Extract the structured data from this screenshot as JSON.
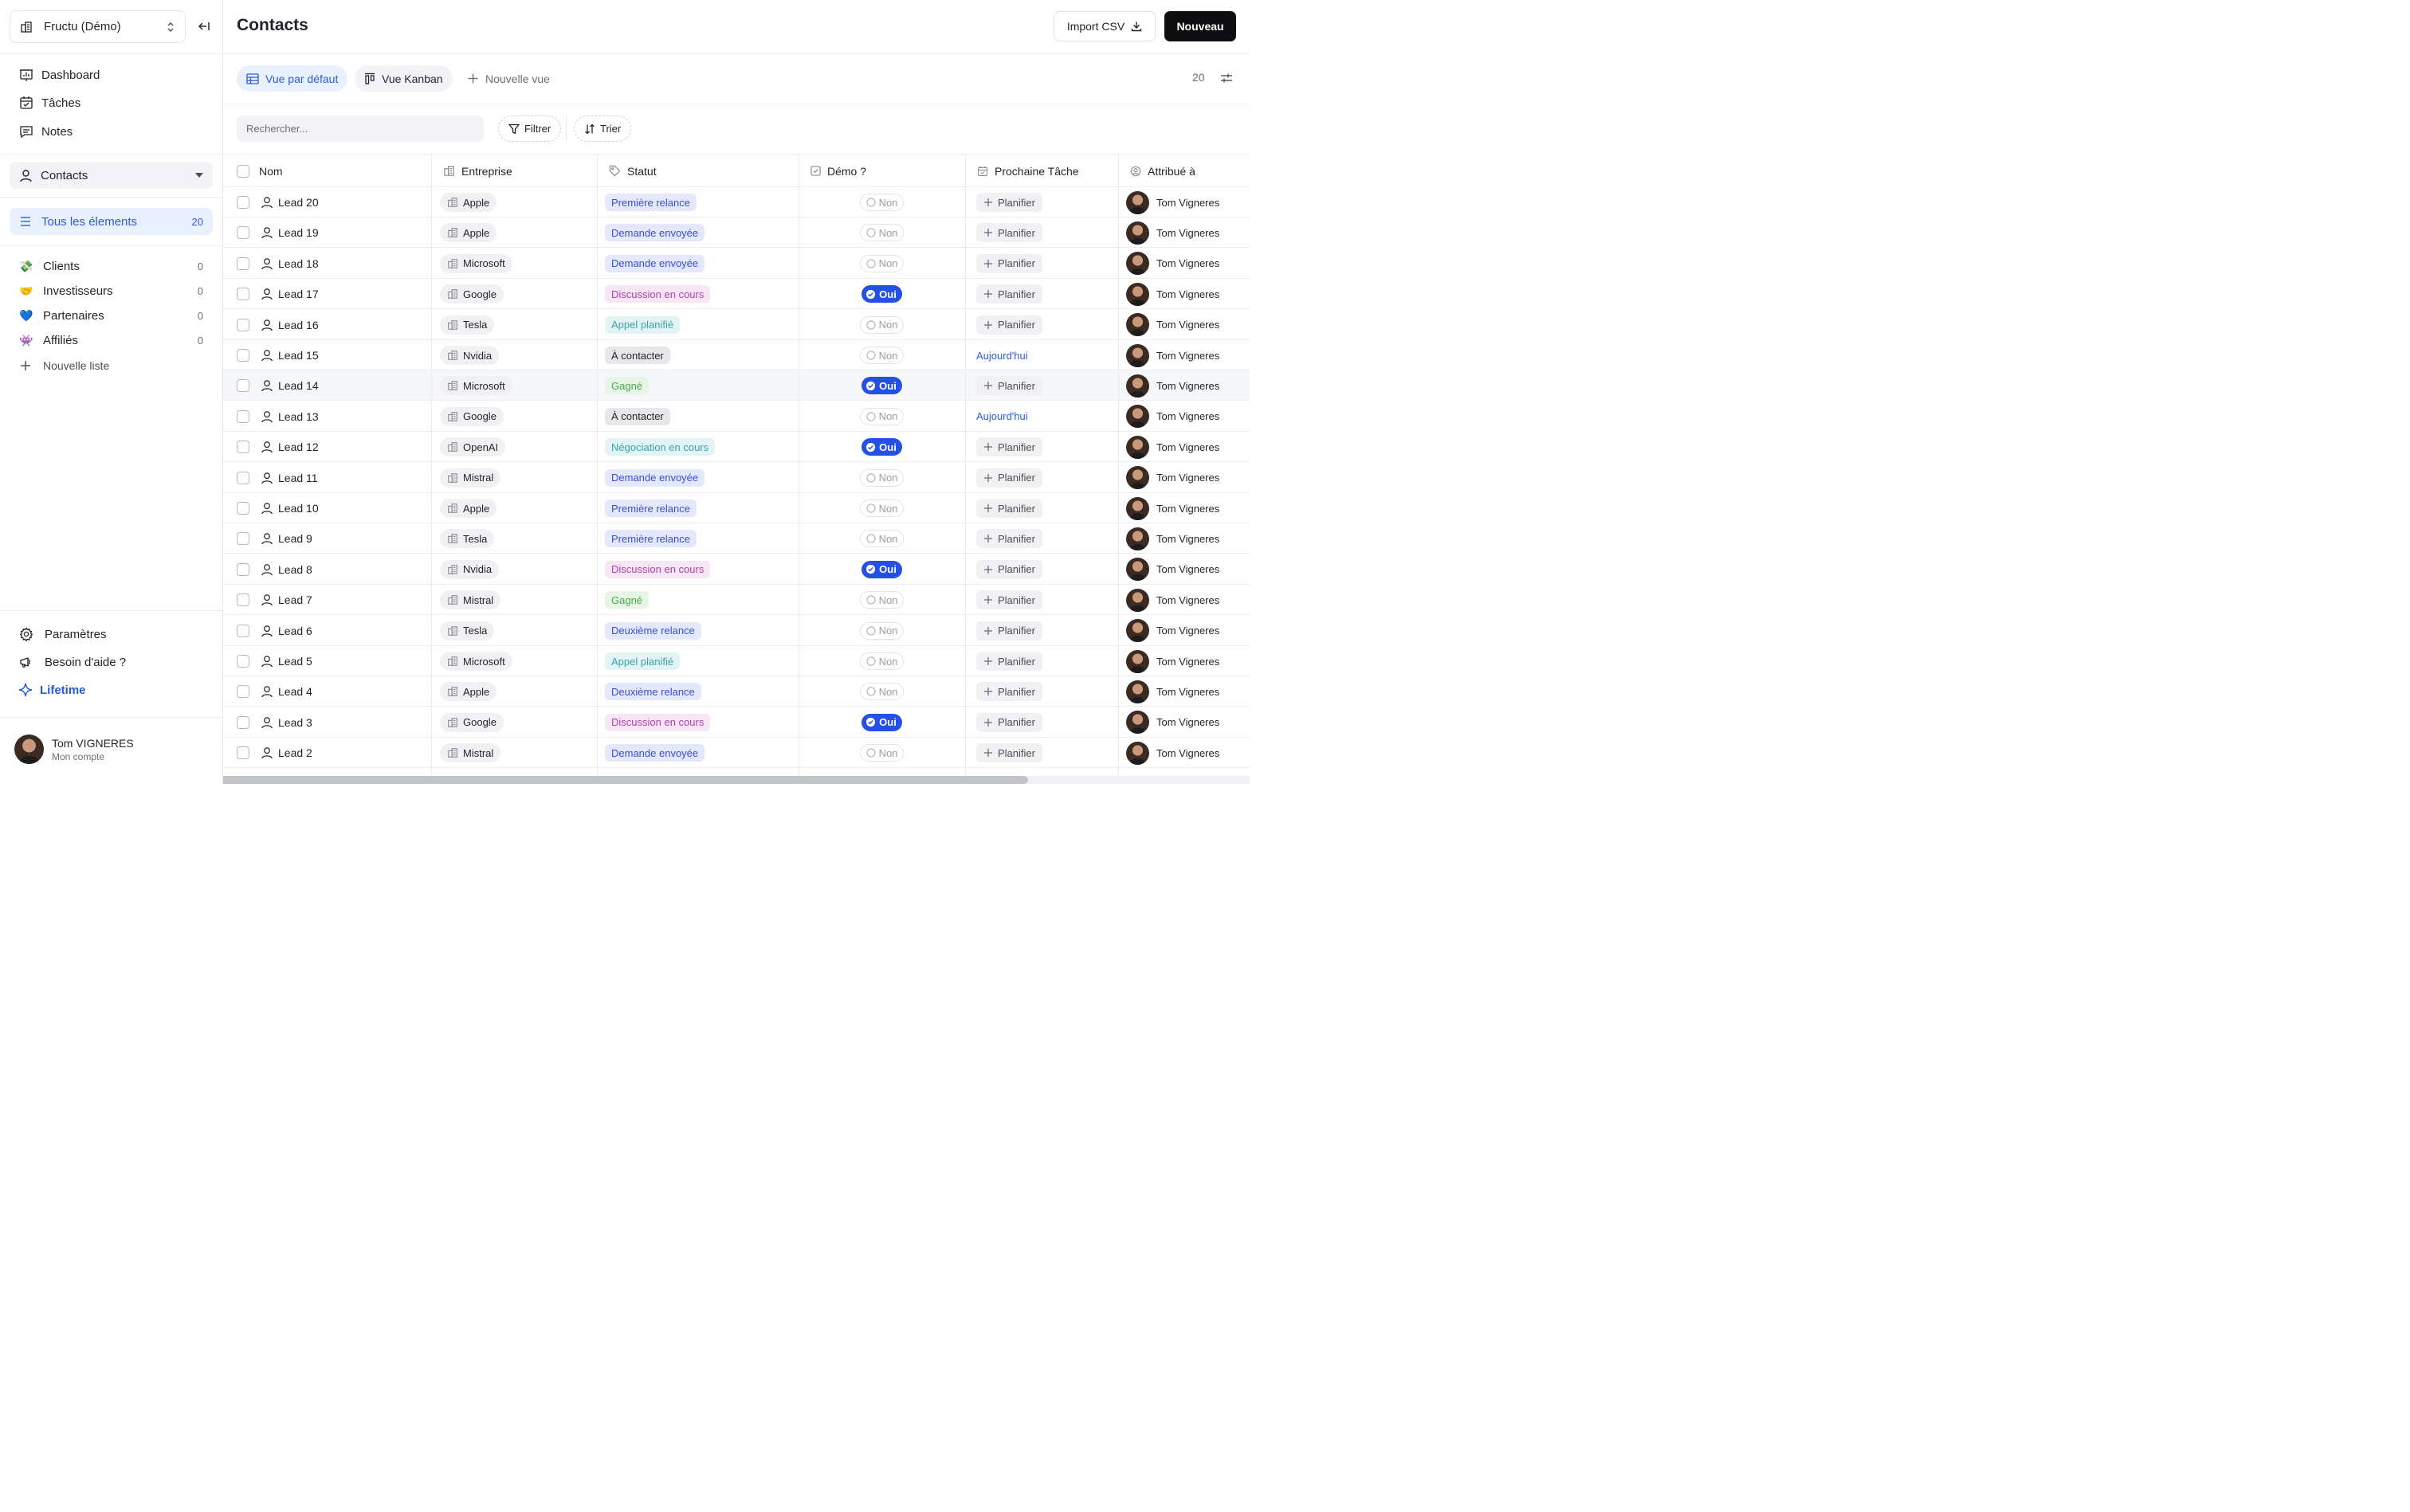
{
  "workspace": {
    "name": "Fructu (Démo)"
  },
  "nav": [
    {
      "label": "Dashboard",
      "icon": "dashboard-icon"
    },
    {
      "label": "Tâches",
      "icon": "calendar-check-icon"
    },
    {
      "label": "Notes",
      "icon": "message-square-icon"
    }
  ],
  "section": {
    "label": "Contacts"
  },
  "all_items": {
    "label": "Tous les élements",
    "count": "20"
  },
  "lists": [
    {
      "emoji": "💸",
      "label": "Clients",
      "count": "0"
    },
    {
      "emoji": "🤝",
      "label": "Investisseurs",
      "count": "0"
    },
    {
      "emoji": "💙",
      "label": "Partenaires",
      "count": "0"
    },
    {
      "emoji": "👾",
      "label": "Affiliés",
      "count": "0"
    }
  ],
  "new_list_label": "Nouvelle liste",
  "bottom": {
    "settings": "Paramètres",
    "help": "Besoin d'aide ?",
    "lifetime": "Lifetime"
  },
  "user": {
    "name": "Tom VIGNERES",
    "subtitle": "Mon compte"
  },
  "header": {
    "title": "Contacts",
    "import_label": "Import CSV",
    "new_label": "Nouveau"
  },
  "views": {
    "default": "Vue par défaut",
    "kanban": "Vue Kanban",
    "new": "Nouvelle vue",
    "count": "20"
  },
  "toolbar": {
    "search_placeholder": "Rechercher...",
    "filter": "Filtrer",
    "sort": "Trier"
  },
  "columns": {
    "name": "Nom",
    "company": "Entreprise",
    "status": "Statut",
    "demo": "Démo ?",
    "next_task": "Prochaine Tâche",
    "assigned": "Attribué à"
  },
  "status_colors": {
    "Première relance": {
      "bg": "#e4e8fd",
      "fg": "#3a4fd8"
    },
    "Demande envoyée": {
      "bg": "#e4e8fd",
      "fg": "#3a4fd8"
    },
    "Deuxième relance": {
      "bg": "#e4e8fd",
      "fg": "#3a4fd8"
    },
    "Discussion en cours": {
      "bg": "#f7e6f6",
      "fg": "#b341b0"
    },
    "Appel planifié": {
      "bg": "#e2f4f5",
      "fg": "#3aa3ad"
    },
    "Négociation en cours": {
      "bg": "#e2f4f5",
      "fg": "#3aa3ad"
    },
    "À contacter": {
      "bg": "#e8e8ea",
      "fg": "#1f2328"
    },
    "Gagné": {
      "bg": "#e6f5e6",
      "fg": "#4aa84e"
    }
  },
  "rows": [
    {
      "name": "Lead 20",
      "company": "Apple",
      "status": "Première relance",
      "demo": false,
      "task": "Planifier",
      "assignee": "Tom Vigneres"
    },
    {
      "name": "Lead 19",
      "company": "Apple",
      "status": "Demande envoyée",
      "demo": false,
      "task": "Planifier",
      "assignee": "Tom Vigneres"
    },
    {
      "name": "Lead 18",
      "company": "Microsoft",
      "status": "Demande envoyée",
      "demo": false,
      "task": "Planifier",
      "assignee": "Tom Vigneres"
    },
    {
      "name": "Lead 17",
      "company": "Google",
      "status": "Discussion en cours",
      "demo": true,
      "task": "Planifier",
      "assignee": "Tom Vigneres"
    },
    {
      "name": "Lead 16",
      "company": "Tesla",
      "status": "Appel planifié",
      "demo": false,
      "task": "Planifier",
      "assignee": "Tom Vigneres"
    },
    {
      "name": "Lead 15",
      "company": "Nvidia",
      "status": "À contacter",
      "demo": false,
      "task": "Aujourd'hui",
      "assignee": "Tom Vigneres"
    },
    {
      "name": "Lead 14",
      "company": "Microsoft",
      "status": "Gagné",
      "demo": true,
      "task": "Planifier",
      "assignee": "Tom Vigneres"
    },
    {
      "name": "Lead 13",
      "company": "Google",
      "status": "À contacter",
      "demo": false,
      "task": "Aujourd'hui",
      "assignee": "Tom Vigneres"
    },
    {
      "name": "Lead 12",
      "company": "OpenAI",
      "status": "Négociation en cours",
      "demo": true,
      "task": "Planifier",
      "assignee": "Tom Vigneres"
    },
    {
      "name": "Lead 11",
      "company": "Mistral",
      "status": "Demande envoyée",
      "demo": false,
      "task": "Planifier",
      "assignee": "Tom Vigneres"
    },
    {
      "name": "Lead 10",
      "company": "Apple",
      "status": "Première relance",
      "demo": false,
      "task": "Planifier",
      "assignee": "Tom Vigneres"
    },
    {
      "name": "Lead 9",
      "company": "Tesla",
      "status": "Première relance",
      "demo": false,
      "task": "Planifier",
      "assignee": "Tom Vigneres"
    },
    {
      "name": "Lead 8",
      "company": "Nvidia",
      "status": "Discussion en cours",
      "demo": true,
      "task": "Planifier",
      "assignee": "Tom Vigneres"
    },
    {
      "name": "Lead 7",
      "company": "Mistral",
      "status": "Gagné",
      "demo": false,
      "task": "Planifier",
      "assignee": "Tom Vigneres"
    },
    {
      "name": "Lead 6",
      "company": "Tesla",
      "status": "Deuxième relance",
      "demo": false,
      "task": "Planifier",
      "assignee": "Tom Vigneres"
    },
    {
      "name": "Lead 5",
      "company": "Microsoft",
      "status": "Appel planifié",
      "demo": false,
      "task": "Planifier",
      "assignee": "Tom Vigneres"
    },
    {
      "name": "Lead 4",
      "company": "Apple",
      "status": "Deuxième relance",
      "demo": false,
      "task": "Planifier",
      "assignee": "Tom Vigneres"
    },
    {
      "name": "Lead 3",
      "company": "Google",
      "status": "Discussion en cours",
      "demo": true,
      "task": "Planifier",
      "assignee": "Tom Vigneres"
    },
    {
      "name": "Lead 2",
      "company": "Mistral",
      "status": "Demande envoyée",
      "demo": false,
      "task": "Planifier",
      "assignee": "Tom Vigneres"
    }
  ],
  "labels": {
    "oui": "Oui",
    "non": "Non"
  }
}
